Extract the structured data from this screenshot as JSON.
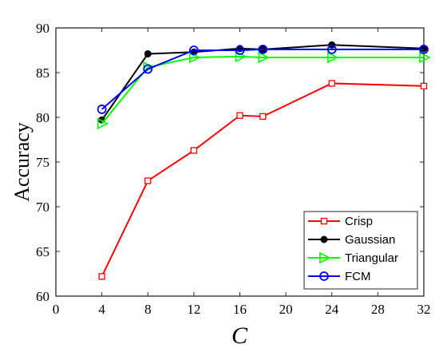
{
  "chart_data": {
    "type": "line",
    "title": "",
    "xlabel": "C",
    "ylabel": "Accuracy",
    "xlim": [
      0,
      32
    ],
    "ylim": [
      60,
      90
    ],
    "xticks": [
      0,
      4,
      8,
      12,
      16,
      20,
      24,
      28,
      32
    ],
    "yticks": [
      60,
      65,
      70,
      75,
      80,
      85,
      90
    ],
    "grid": false,
    "legend_position": "bottom-right",
    "series": [
      {
        "name": "Crisp",
        "color": "#ff0000",
        "marker": "square-open",
        "x": [
          4,
          8,
          12,
          16,
          18,
          24,
          32
        ],
        "y": [
          62.2,
          72.9,
          76.3,
          80.2,
          80.1,
          83.8,
          83.5
        ]
      },
      {
        "name": "Gaussian",
        "color": "#000000",
        "marker": "dot-filled",
        "x": [
          4,
          8,
          12,
          16,
          18,
          24,
          32
        ],
        "y": [
          79.7,
          87.1,
          87.3,
          87.7,
          87.6,
          88.1,
          87.7
        ]
      },
      {
        "name": "Triangular",
        "color": "#00ff00",
        "marker": "triangle-right-open",
        "x": [
          4,
          8,
          12,
          16,
          18,
          24,
          32
        ],
        "y": [
          79.3,
          85.6,
          86.7,
          86.8,
          86.7,
          86.7,
          86.7
        ]
      },
      {
        "name": "FCM",
        "color": "#0000ff",
        "marker": "circle-open",
        "x": [
          4,
          8,
          12,
          16,
          18,
          24,
          32
        ],
        "y": [
          80.9,
          85.4,
          87.5,
          87.5,
          87.6,
          87.6,
          87.6
        ]
      }
    ]
  }
}
